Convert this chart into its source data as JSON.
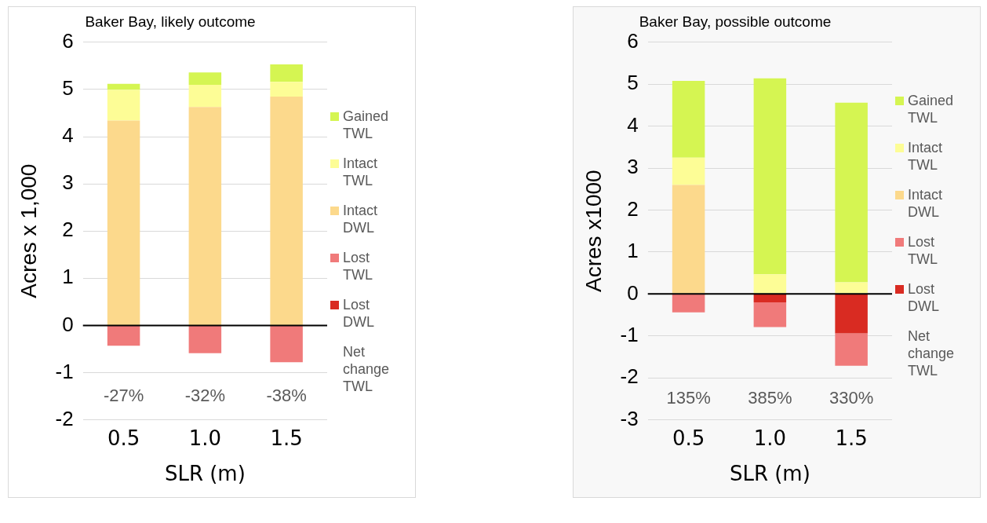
{
  "chart_data": [
    {
      "type": "bar",
      "title": "Baker Bay, likely outcome",
      "xlabel": "SLR (m)",
      "ylabel": "Acres x 1,000",
      "categories": [
        "0.5",
        "1.0",
        "1.5"
      ],
      "stacked": true,
      "series": [
        {
          "name": "Lost DWL",
          "color": "#d92b22",
          "values": [
            0,
            0,
            0
          ]
        },
        {
          "name": "Lost TWL",
          "color": "#f07a7a",
          "values": [
            -0.43,
            -0.59,
            -0.78
          ]
        },
        {
          "name": "Intact DWL",
          "color": "#fcd98c",
          "values": [
            4.34,
            4.63,
            4.85
          ]
        },
        {
          "name": "Intact TWL",
          "color": "#fdfd96",
          "values": [
            0.65,
            0.47,
            0.31
          ]
        },
        {
          "name": "Gained TWL",
          "color": "#d5f552",
          "values": [
            0.13,
            0.26,
            0.37
          ]
        }
      ],
      "ylim": [
        -2,
        6
      ],
      "yticks": [
        -2,
        -1,
        0,
        1,
        2,
        3,
        4,
        5,
        6
      ],
      "grid": "y",
      "legend": "right",
      "ref_lines": [
        {
          "axis": "y",
          "value": 0,
          "color": "#000000"
        }
      ],
      "annotations": [
        "-27%",
        "-32%",
        "-38%",
        "Net change TWL"
      ]
    },
    {
      "type": "bar",
      "title": "Baker Bay, possible outcome",
      "xlabel": "SLR (m)",
      "ylabel": "Acres x1000",
      "categories": [
        "0.5",
        "1.0",
        "1.5"
      ],
      "stacked": true,
      "series": [
        {
          "name": "Lost DWL",
          "color": "#d92b22",
          "values": [
            0,
            -0.2,
            -0.94
          ]
        },
        {
          "name": "Lost TWL",
          "color": "#f07a7a",
          "values": [
            -0.44,
            -0.59,
            -0.77
          ]
        },
        {
          "name": "Intact DWL",
          "color": "#fcd98c",
          "values": [
            2.6,
            0,
            0
          ]
        },
        {
          "name": "Intact TWL",
          "color": "#fdfd96",
          "values": [
            0.65,
            0.47,
            0.28
          ]
        },
        {
          "name": "Gained TWL",
          "color": "#d5f552",
          "values": [
            1.83,
            4.67,
            4.28
          ]
        }
      ],
      "ylim": [
        -3,
        6
      ],
      "yticks": [
        -3,
        -2,
        -1,
        0,
        1,
        2,
        3,
        4,
        5,
        6
      ],
      "grid": "y",
      "legend": "right",
      "ref_lines": [
        {
          "axis": "y",
          "value": 0,
          "color": "#000000"
        }
      ],
      "annotations": [
        "135%",
        "385%",
        "330%",
        "Net change TWL"
      ]
    }
  ]
}
